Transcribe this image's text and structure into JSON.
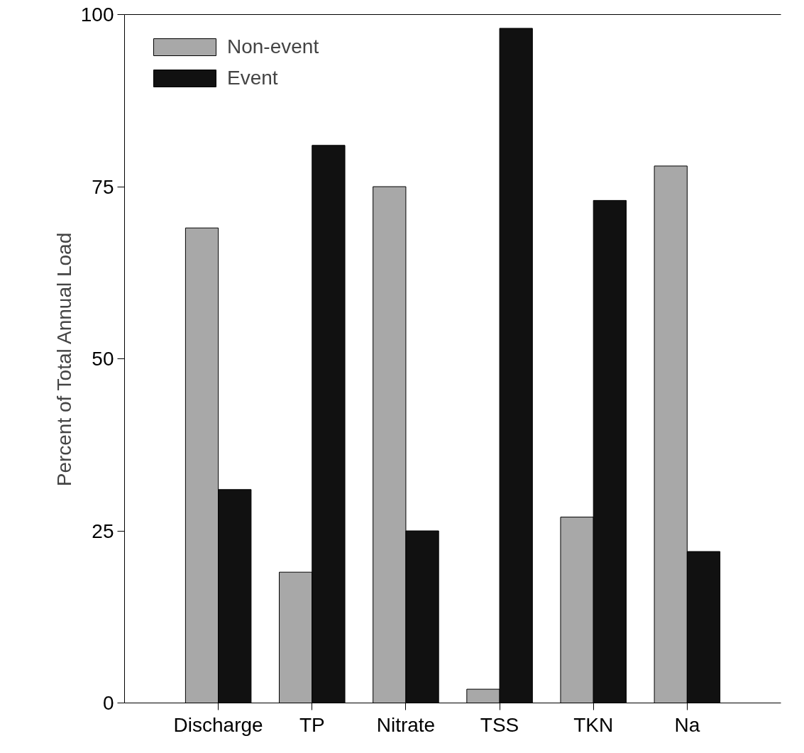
{
  "chart_data": {
    "type": "bar",
    "ylabel": "Percent of Total Annual Load",
    "categories": [
      "Discharge",
      "TP",
      "Nitrate",
      "TSS",
      "TKN",
      "Na"
    ],
    "series": [
      {
        "name": "Non-event",
        "color": "#a8a8a8",
        "values": [
          69,
          19,
          75,
          2,
          27,
          78
        ]
      },
      {
        "name": "Event",
        "color": "#111111",
        "values": [
          31,
          81,
          25,
          98,
          73,
          22
        ]
      }
    ],
    "ylim": [
      0,
      100
    ],
    "yticks": [
      0,
      25,
      50,
      75,
      100
    ],
    "grid": false,
    "legend": "top left"
  }
}
